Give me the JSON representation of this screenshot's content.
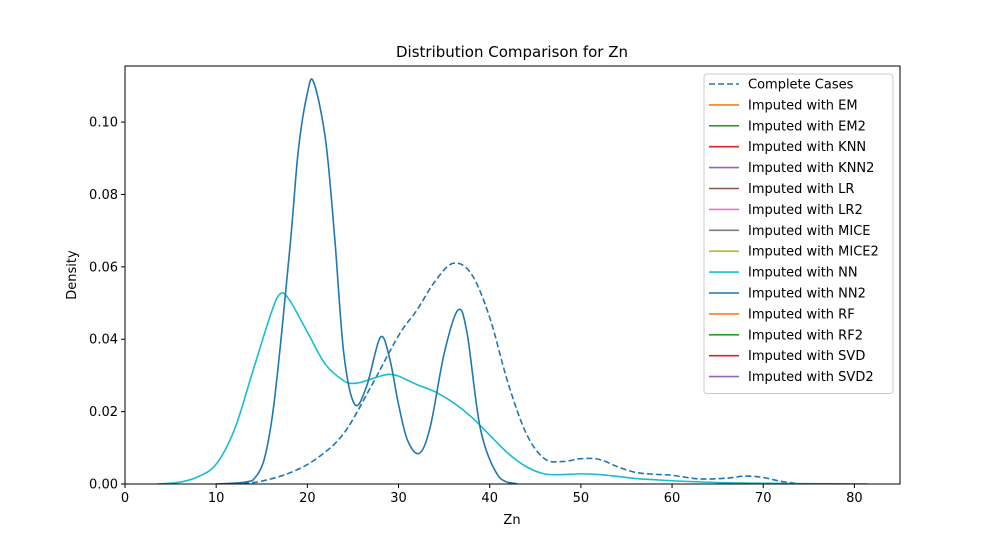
{
  "chart_data": {
    "type": "line",
    "title": "Distribution Comparison for Zn",
    "xlabel": "Zn",
    "ylabel": "Density",
    "xlim": [
      0,
      85
    ],
    "ylim": [
      0,
      0.1155
    ],
    "xticks": [
      0,
      10,
      20,
      30,
      40,
      50,
      60,
      70,
      80
    ],
    "xtick_labels": [
      "0",
      "10",
      "20",
      "30",
      "40",
      "50",
      "60",
      "70",
      "80"
    ],
    "yticks": [
      0,
      0.02,
      0.04,
      0.06,
      0.08,
      0.1
    ],
    "ytick_labels": [
      "0.00",
      "0.02",
      "0.04",
      "0.06",
      "0.08",
      "0.10"
    ],
    "grid": false,
    "legend_position": "top-right",
    "series": [
      {
        "name": "Complete Cases",
        "color": "#1f77b4",
        "dash": true,
        "x": [
          10,
          13,
          15,
          18,
          21,
          24,
          27,
          30,
          32,
          34,
          36,
          38,
          40,
          42,
          44,
          46,
          48,
          50,
          52,
          54,
          56,
          58,
          60,
          63,
          66,
          68,
          70,
          72,
          74
        ],
        "y": [
          0,
          0.0002,
          0.0008,
          0.003,
          0.007,
          0.014,
          0.027,
          0.041,
          0.048,
          0.056,
          0.061,
          0.058,
          0.046,
          0.028,
          0.014,
          0.007,
          0.0062,
          0.007,
          0.0068,
          0.0048,
          0.0032,
          0.0027,
          0.0024,
          0.0014,
          0.0016,
          0.0022,
          0.0018,
          0.0007,
          0.0001
        ]
      },
      {
        "name": "Imputed with EM",
        "color": "#ff7f0e"
      },
      {
        "name": "Imputed with EM2",
        "color": "#2ca02c"
      },
      {
        "name": "Imputed with KNN",
        "color": "#d62728"
      },
      {
        "name": "Imputed with KNN2",
        "color": "#9467bd"
      },
      {
        "name": "Imputed with LR",
        "color": "#8c564b"
      },
      {
        "name": "Imputed with LR2",
        "color": "#e377c2"
      },
      {
        "name": "Imputed with MICE",
        "color": "#7f7f7f"
      },
      {
        "name": "Imputed with MICE2",
        "color": "#bcbd22"
      },
      {
        "name": "Imputed with NN",
        "color": "#17becf",
        "x": [
          3.5,
          6,
          8,
          10,
          12,
          14,
          16,
          17,
          18,
          20,
          22,
          24,
          25,
          26,
          28,
          29,
          30,
          32,
          34,
          36,
          38,
          40,
          42,
          44,
          46,
          48,
          50,
          52,
          54,
          56,
          58,
          60,
          65,
          70,
          75,
          81.5
        ],
        "y": [
          0,
          0.0005,
          0.002,
          0.0055,
          0.015,
          0.031,
          0.047,
          0.0525,
          0.051,
          0.042,
          0.033,
          0.0285,
          0.0278,
          0.0282,
          0.0298,
          0.0303,
          0.0298,
          0.0275,
          0.0255,
          0.0225,
          0.0185,
          0.0135,
          0.0085,
          0.0048,
          0.0028,
          0.0026,
          0.0028,
          0.0026,
          0.0021,
          0.0015,
          0.0012,
          0.0009,
          0.0004,
          0.0002,
          0.0001,
          0
        ]
      },
      {
        "name": "Imputed with NN2",
        "color": "#1f77b4",
        "x": [
          10,
          14,
          16,
          18,
          19,
          20,
          20.7,
          22,
          23,
          24,
          25.2,
          26.5,
          28,
          29,
          30,
          31,
          32.3,
          33.5,
          35,
          36.5,
          37.5,
          39,
          41,
          43
        ],
        "y": [
          0,
          0.001,
          0.016,
          0.063,
          0.092,
          0.108,
          0.111,
          0.095,
          0.068,
          0.036,
          0.022,
          0.027,
          0.0405,
          0.035,
          0.022,
          0.012,
          0.0085,
          0.016,
          0.036,
          0.048,
          0.042,
          0.015,
          0.002,
          0
        ]
      },
      {
        "name": "Imputed with RF",
        "color": "#ff7f0e"
      },
      {
        "name": "Imputed with RF2",
        "color": "#2ca02c"
      },
      {
        "name": "Imputed with SVD",
        "color": "#d62728"
      },
      {
        "name": "Imputed with SVD2",
        "color": "#9467bd"
      }
    ]
  }
}
